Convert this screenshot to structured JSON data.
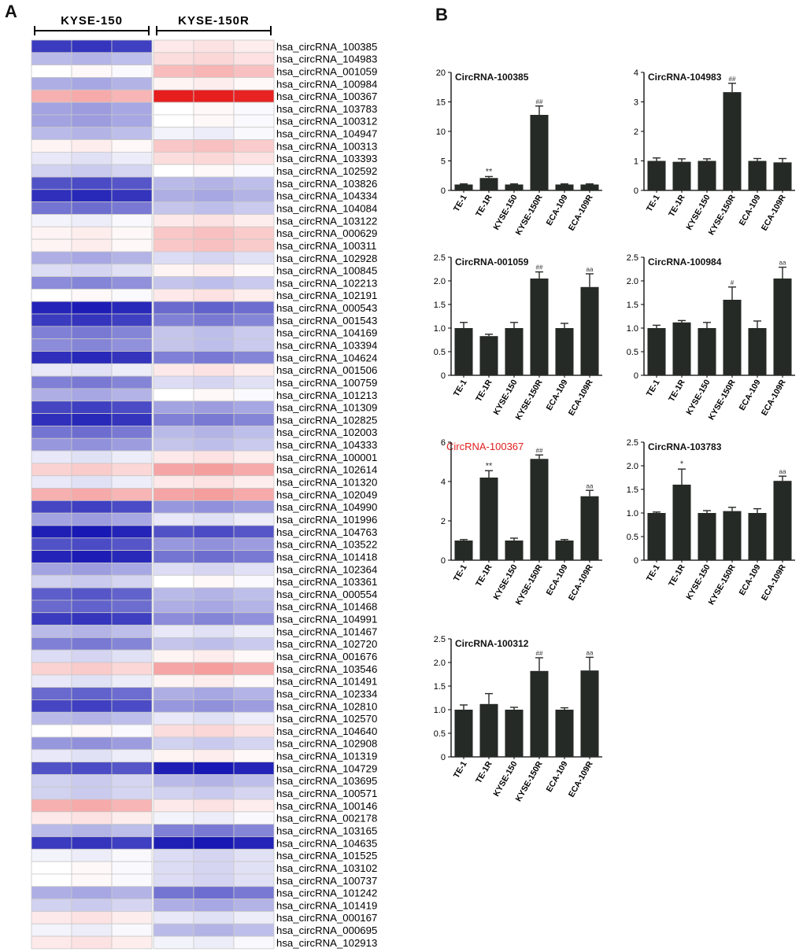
{
  "panels": {
    "a": "A",
    "b": "B"
  },
  "colors": {
    "bar": "#262a26",
    "axis": "#000000",
    "highlight_title": "#e0201e",
    "heat_low": "#1818b4",
    "heat_mid": "#ffffff",
    "heat_high": "#e61e1e"
  },
  "chart_data": [
    {
      "type": "heatmap",
      "group_labels": [
        "KYSE-150",
        "KYSE-150R"
      ],
      "columns_per_group": 3,
      "scale": "blue = low, white = mid, red = high (relative z-score, no legend printed)",
      "rows": [
        "hsa_circRNA_100385",
        "hsa_circRNA_104983",
        "hsa_circRNA_001059",
        "hsa_circRNA_100984",
        "hsa_circRNA_100367",
        "hsa_circRNA_103783",
        "hsa_circRNA_100312",
        "hsa_circRNA_104947",
        "hsa_circRNA_100313",
        "hsa_circRNA_103393",
        "hsa_circRNA_102592",
        "hsa_circRNA_103826",
        "hsa_circRNA_104334",
        "hsa_circRNA_104084",
        "hsa_circRNA_103122",
        "hsa_circRNA_000629",
        "hsa_circRNA_100311",
        "hsa_circRNA_102928",
        "hsa_circRNA_100845",
        "hsa_circRNA_102213",
        "hsa_circRNA_102191",
        "hsa_circRNA_000543",
        "hsa_circRNA_001543",
        "hsa_circRNA_104169",
        "hsa_circRNA_103394",
        "hsa_circRNA_104624",
        "hsa_circRNA_001506",
        "hsa_circRNA_100759",
        "hsa_circRNA_101213",
        "hsa_circRNA_101309",
        "hsa_circRNA_102825",
        "hsa_circRNA_102003",
        "hsa_circRNA_104333",
        "hsa_circRNA_100001",
        "hsa_circRNA_102614",
        "hsa_circRNA_101320",
        "hsa_circRNA_102049",
        "hsa_circRNA_104990",
        "hsa_circRNA_101996",
        "hsa_circRNA_104763",
        "hsa_circRNA_103522",
        "hsa_circRNA_101418",
        "hsa_circRNA_102364",
        "hsa_circRNA_103361",
        "hsa_circRNA_000554",
        "hsa_circRNA_101468",
        "hsa_circRNA_104991",
        "hsa_circRNA_101467",
        "hsa_circRNA_102720",
        "hsa_circRNA_001676",
        "hsa_circRNA_103546",
        "hsa_circRNA_101491",
        "hsa_circRNA_102334",
        "hsa_circRNA_102810",
        "hsa_circRNA_102570",
        "hsa_circRNA_104640",
        "hsa_circRNA_102908",
        "hsa_circRNA_101319",
        "hsa_circRNA_104729",
        "hsa_circRNA_103695",
        "hsa_circRNA_100571",
        "hsa_circRNA_100146",
        "hsa_circRNA_002178",
        "hsa_circRNA_103165",
        "hsa_circRNA_104635",
        "hsa_circRNA_101525",
        "hsa_circRNA_103102",
        "hsa_circRNA_100737",
        "hsa_circRNA_101242",
        "hsa_circRNA_101419",
        "hsa_circRNA_000167",
        "hsa_circRNA_000695",
        "hsa_circRNA_102913"
      ],
      "values_kyse150": [
        -0.85,
        -0.3,
        0,
        -0.35,
        0.35,
        -0.4,
        -0.4,
        -0.3,
        0.05,
        -0.1,
        -0.2,
        -0.75,
        -0.9,
        -0.6,
        -0.05,
        0.05,
        0.05,
        -0.35,
        -0.15,
        -0.5,
        0,
        -0.95,
        -0.85,
        -0.55,
        -0.5,
        -0.9,
        -0.1,
        -0.55,
        -0.35,
        -0.8,
        -0.9,
        -0.6,
        -0.45,
        -0.1,
        0.2,
        -0.1,
        0.35,
        -0.8,
        -0.4,
        -0.97,
        -0.75,
        -0.95,
        -0.4,
        -0.2,
        -0.7,
        -0.65,
        -0.85,
        -0.3,
        -0.55,
        -0.15,
        0.2,
        -0.1,
        -0.65,
        -0.8,
        -0.3,
        0,
        -0.45,
        -0.1,
        -0.75,
        -0.2,
        -0.2,
        0.35,
        0.1,
        -0.3,
        -0.85,
        -0.05,
        0,
        0,
        -0.35,
        -0.2,
        0.1,
        -0.05,
        0.1
      ],
      "values_kyse150r": [
        0.1,
        0.15,
        0.3,
        0.05,
        1,
        0,
        0,
        -0.05,
        0.25,
        0.15,
        0,
        -0.3,
        -0.35,
        -0.25,
        0.1,
        0.25,
        0.25,
        -0.15,
        0.05,
        -0.25,
        0.1,
        -0.65,
        -0.55,
        -0.25,
        -0.25,
        -0.55,
        0.1,
        -0.15,
        0,
        -0.4,
        -0.55,
        -0.3,
        -0.25,
        0.1,
        0.4,
        0.1,
        0.4,
        -0.45,
        -0.1,
        -0.75,
        -0.45,
        -0.6,
        -0.15,
        0,
        -0.3,
        -0.35,
        -0.5,
        -0.1,
        -0.25,
        0.05,
        0.4,
        0.05,
        -0.35,
        -0.45,
        -0.1,
        0.15,
        -0.2,
        0.05,
        -0.97,
        -0.3,
        -0.2,
        0.1,
        -0.05,
        -0.55,
        -0.97,
        -0.15,
        -0.15,
        -0.15,
        -0.6,
        -0.35,
        -0.1,
        -0.3,
        -0.05
      ]
    },
    {
      "type": "bar",
      "title": "CircRNA-100385",
      "categories": [
        "TE-1",
        "TE-1R",
        "KYSE-150",
        "KYSE-150R",
        "ECA-109",
        "ECA-109R"
      ],
      "values": [
        1.0,
        2.1,
        1.0,
        12.8,
        1.0,
        1.0
      ],
      "errors": [
        0.1,
        0.25,
        0.1,
        1.5,
        0.1,
        0.1
      ],
      "annotations": [
        "",
        "**",
        "",
        "##",
        "",
        ""
      ],
      "ylim": [
        0,
        20
      ],
      "yticks": [
        "0",
        "5",
        "10",
        "15",
        "20"
      ]
    },
    {
      "type": "bar",
      "title": "CircRNA-104983",
      "categories": [
        "TE-1",
        "TE-1R",
        "KYSE-150",
        "KYSE-150R",
        "ECA-109",
        "ECA-109R"
      ],
      "values": [
        1.0,
        0.97,
        1.0,
        3.33,
        1.0,
        0.95
      ],
      "errors": [
        0.1,
        0.1,
        0.07,
        0.3,
        0.08,
        0.13
      ],
      "annotations": [
        "",
        "",
        "",
        "##",
        "",
        ""
      ],
      "ylim": [
        0,
        4
      ],
      "yticks": [
        "0",
        "1",
        "2",
        "3",
        "4"
      ]
    },
    {
      "type": "bar",
      "title": "CircRNA-001059",
      "categories": [
        "TE-1",
        "TE-1R",
        "KYSE-150",
        "KYSE-150R",
        "ECA-109",
        "ECA-109R"
      ],
      "values": [
        1.0,
        0.83,
        1.0,
        2.05,
        1.0,
        1.87
      ],
      "errors": [
        0.12,
        0.04,
        0.12,
        0.14,
        0.1,
        0.28
      ],
      "annotations": [
        "",
        "",
        "",
        "##",
        "",
        "aa"
      ],
      "ylim": [
        0,
        2.5
      ],
      "yticks": [
        "0",
        "0.5",
        "1.0",
        "1.5",
        "2.0",
        "2.5"
      ]
    },
    {
      "type": "bar",
      "title": "CircRNA-100984",
      "categories": [
        "TE-1",
        "TE-1R",
        "KYSE-150",
        "KYSE-150R",
        "ECA-109",
        "ECA-109R"
      ],
      "values": [
        1.0,
        1.12,
        1.0,
        1.6,
        1.0,
        2.05
      ],
      "errors": [
        0.06,
        0.04,
        0.12,
        0.27,
        0.15,
        0.24
      ],
      "annotations": [
        "",
        "",
        "",
        "#",
        "",
        "aa"
      ],
      "ylim": [
        0,
        2.5
      ],
      "yticks": [
        "0",
        "0.5",
        "1.0",
        "1.5",
        "2.0",
        "2.5"
      ]
    },
    {
      "type": "bar",
      "title": "CircRNA-100367",
      "title_highlight": true,
      "categories": [
        "TE-1",
        "TE-1R",
        "KYSE-150",
        "KYSE-150R",
        "ECA-109",
        "ECA-109R"
      ],
      "values": [
        1.0,
        4.2,
        1.0,
        5.15,
        1.0,
        3.25
      ],
      "errors": [
        0.05,
        0.35,
        0.12,
        0.2,
        0.05,
        0.3
      ],
      "annotations": [
        "",
        "**",
        "",
        "##",
        "",
        "aa"
      ],
      "ylim": [
        0,
        6
      ],
      "yticks": [
        "0",
        "2",
        "4",
        "6"
      ]
    },
    {
      "type": "bar",
      "title": "CircRNA-103783",
      "categories": [
        "TE-1",
        "TE-1R",
        "KYSE-150",
        "KYSE-150R",
        "ECA-109",
        "ECA-109R"
      ],
      "values": [
        1.0,
        1.6,
        1.0,
        1.04,
        1.0,
        1.68
      ],
      "errors": [
        0.02,
        0.33,
        0.05,
        0.08,
        0.09,
        0.1
      ],
      "annotations": [
        "",
        "*",
        "",
        "",
        "",
        "aa"
      ],
      "ylim": [
        0,
        2.5
      ],
      "yticks": [
        "0",
        "0.5",
        "1.0",
        "1.5",
        "2.0",
        "2.5"
      ]
    },
    {
      "type": "bar",
      "title": "CircRNA-100312",
      "categories": [
        "TE-1",
        "TE-1R",
        "KYSE-150",
        "KYSE-150R",
        "ECA-109",
        "ECA-109R"
      ],
      "values": [
        1.0,
        1.12,
        1.0,
        1.82,
        1.0,
        1.83
      ],
      "errors": [
        0.1,
        0.22,
        0.05,
        0.28,
        0.04,
        0.28
      ],
      "annotations": [
        "",
        "",
        "",
        "##",
        "",
        "aa"
      ],
      "ylim": [
        0,
        2.5
      ],
      "yticks": [
        "0",
        "0.5",
        "1.0",
        "1.5",
        "2.0",
        "2.5"
      ]
    }
  ]
}
